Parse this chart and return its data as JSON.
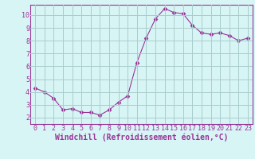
{
  "x": [
    0,
    1,
    2,
    3,
    4,
    5,
    6,
    7,
    8,
    9,
    10,
    11,
    12,
    13,
    14,
    15,
    16,
    17,
    18,
    19,
    20,
    21,
    22,
    23
  ],
  "y": [
    4.3,
    4.0,
    3.5,
    2.6,
    2.7,
    2.4,
    2.4,
    2.2,
    2.6,
    3.2,
    3.7,
    6.3,
    8.2,
    9.7,
    10.5,
    10.2,
    10.1,
    9.2,
    8.6,
    8.5,
    8.6,
    8.4,
    8.0,
    8.2
  ],
  "line_color": "#993399",
  "marker": "D",
  "marker_size": 2.5,
  "bg_color": "#d8f5f5",
  "grid_color": "#aacccc",
  "xlabel": "Windchill (Refroidissement éolien,°C)",
  "xlim": [
    -0.5,
    23.5
  ],
  "ylim": [
    1.5,
    10.8
  ],
  "yticks": [
    2,
    3,
    4,
    5,
    6,
    7,
    8,
    9,
    10
  ],
  "xticks": [
    0,
    1,
    2,
    3,
    4,
    5,
    6,
    7,
    8,
    9,
    10,
    11,
    12,
    13,
    14,
    15,
    16,
    17,
    18,
    19,
    20,
    21,
    22,
    23
  ],
  "tick_fontsize": 6,
  "xlabel_fontsize": 7,
  "label_color": "#993399",
  "border_color": "#993399",
  "spine_color": "#993399"
}
